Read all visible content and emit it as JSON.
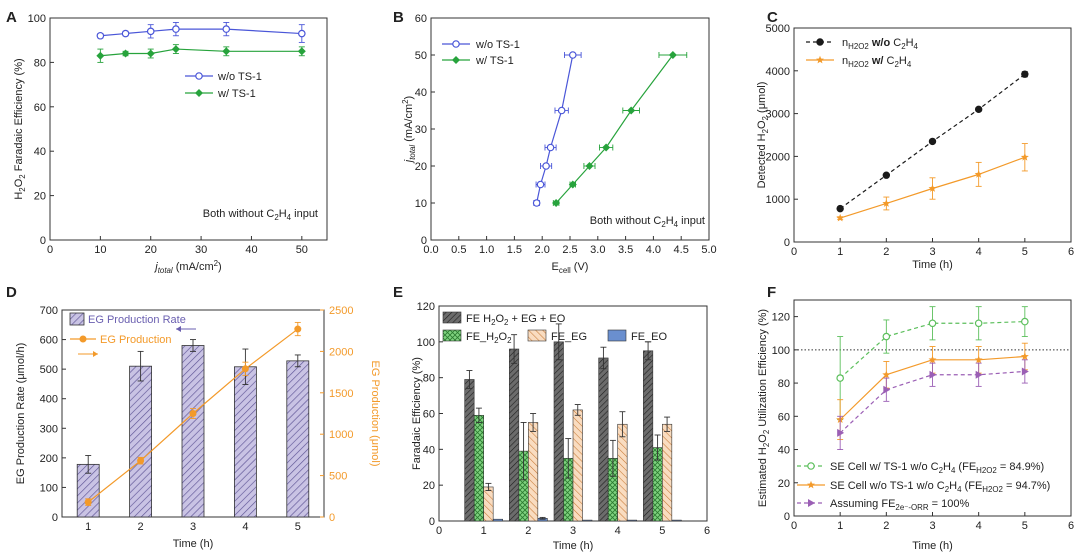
{
  "chart_data": [
    {
      "panel": "A",
      "type": "line",
      "xlabel": "j_total (mA/cm2)",
      "ylabel": "H2O2 Faradaic Efficiency (%)",
      "xlim": [
        0,
        55
      ],
      "ylim": [
        0,
        100
      ],
      "xticks": [
        0,
        10,
        20,
        30,
        40,
        50
      ],
      "yticks": [
        0,
        20,
        40,
        60,
        80,
        100
      ],
      "annotation": "Both without C2H4 input",
      "series": [
        {
          "name": "w/o TS-1",
          "color": "#4a56d8",
          "marker": "open-circle",
          "x": [
            10,
            15,
            20,
            25,
            35,
            50
          ],
          "y": [
            92,
            93,
            94,
            95,
            95,
            93
          ],
          "err": [
            1,
            1,
            3,
            3,
            3,
            4
          ]
        },
        {
          "name": "w/   TS-1",
          "color": "#27a33c",
          "marker": "diamond",
          "x": [
            10,
            15,
            20,
            25,
            35,
            50
          ],
          "y": [
            83,
            84,
            84,
            86,
            85,
            85
          ],
          "err": [
            3,
            1,
            2,
            2,
            2,
            2
          ]
        }
      ]
    },
    {
      "panel": "B",
      "type": "line",
      "xlabel": "E_cell (V)",
      "ylabel": "j_total (mA/cm2)",
      "xlim": [
        0,
        5
      ],
      "ylim": [
        0,
        60
      ],
      "xticks": [
        0,
        0.5,
        1.0,
        1.5,
        2.0,
        2.5,
        3.0,
        3.5,
        4.0,
        4.5,
        5.0
      ],
      "yticks": [
        0,
        10,
        20,
        30,
        40,
        50,
        60
      ],
      "annotation": "Both without C2H4 input",
      "series": [
        {
          "name": "w/o TS-1",
          "color": "#4a56d8",
          "marker": "open-circle",
          "x": [
            1.9,
            1.97,
            2.07,
            2.15,
            2.35,
            2.55
          ],
          "y": [
            10,
            15,
            20,
            25,
            35,
            50
          ],
          "xerr": [
            0.05,
            0.08,
            0.1,
            0.1,
            0.12,
            0.15
          ]
        },
        {
          "name": "w/ TS-1",
          "color": "#27a33c",
          "marker": "diamond",
          "x": [
            2.25,
            2.55,
            2.85,
            3.15,
            3.6,
            4.35
          ],
          "y": [
            10,
            15,
            20,
            25,
            35,
            50
          ],
          "xerr": [
            0.05,
            0.05,
            0.1,
            0.12,
            0.15,
            0.25
          ]
        }
      ]
    },
    {
      "panel": "C",
      "type": "line",
      "xlabel": "Time (h)",
      "ylabel": "Detected H2O2 (μmol)",
      "xlim": [
        0,
        6
      ],
      "ylim": [
        0,
        5000
      ],
      "xticks": [
        0,
        1,
        2,
        3,
        4,
        5,
        6
      ],
      "yticks": [
        0,
        1000,
        2000,
        3000,
        4000,
        5000
      ],
      "series": [
        {
          "name": "n_H2O2 w/o C2H4",
          "color": "#1a1a1a",
          "marker": "filled-circle",
          "x": [
            1,
            2,
            3,
            4,
            5
          ],
          "y": [
            780,
            1560,
            2350,
            3100,
            3920
          ],
          "err": [
            30,
            30,
            30,
            40,
            60
          ]
        },
        {
          "name": "n_H2O2 w/ C2H4",
          "color": "#f39a2a",
          "marker": "star",
          "x": [
            1,
            2,
            3,
            4,
            5
          ],
          "y": [
            560,
            900,
            1250,
            1580,
            1980
          ],
          "err": [
            30,
            150,
            250,
            280,
            320
          ]
        }
      ]
    },
    {
      "panel": "D",
      "type": "bar",
      "xlabel": "Time (h)",
      "ylabel": "EG Production Rate (μmol/h)",
      "y2label": "EG Production (μmol)",
      "categories": [
        "1",
        "2",
        "3",
        "4",
        "5"
      ],
      "ylim": [
        0,
        700
      ],
      "yticks": [
        0,
        100,
        200,
        300,
        400,
        500,
        600,
        700
      ],
      "y2lim": [
        0,
        2500
      ],
      "y2ticks": [
        0,
        500,
        1000,
        1500,
        2000,
        2500
      ],
      "series": [
        {
          "name": "EG Production Rate",
          "color": "#8a7fc0",
          "axis": "left",
          "kind": "bar",
          "values": [
            178,
            510,
            580,
            508,
            528
          ],
          "err": [
            30,
            50,
            20,
            60,
            20
          ]
        },
        {
          "name": "EG Production",
          "color": "#f39a2a",
          "axis": "right",
          "kind": "line",
          "values": [
            180,
            680,
            1250,
            1790,
            2270
          ],
          "err": [
            40,
            40,
            60,
            80,
            80
          ]
        }
      ]
    },
    {
      "panel": "E",
      "type": "bar",
      "xlabel": "Time (h)",
      "ylabel": "Faradaic Efficiency (%)",
      "xlim": [
        0,
        6
      ],
      "ylim": [
        0,
        120
      ],
      "xticks": [
        0,
        1,
        2,
        3,
        4,
        5,
        6
      ],
      "yticks": [
        0,
        20,
        40,
        60,
        80,
        100,
        120
      ],
      "categories": [
        "1",
        "2",
        "3",
        "4",
        "5"
      ],
      "series": [
        {
          "name": "FE H2O2 + EG + EO",
          "color": "#5a5a5a",
          "values": [
            79,
            96,
            100,
            91,
            95
          ],
          "err": [
            5,
            8,
            10,
            6,
            5
          ]
        },
        {
          "name": "FE_H2O2",
          "color": "#57c05a",
          "values": [
            59,
            39,
            35,
            35,
            41
          ],
          "err": [
            4,
            16,
            11,
            10,
            7
          ]
        },
        {
          "name": "FE_EG",
          "color": "#f5c79a",
          "values": [
            19,
            55,
            62,
            54,
            54
          ],
          "err": [
            2,
            5,
            3,
            7,
            4
          ]
        },
        {
          "name": "FE_EO",
          "color": "#6a8fcf",
          "values": [
            1,
            1.5,
            0.5,
            0.5,
            0.5
          ],
          "err": [
            0,
            0.5,
            0,
            0,
            0
          ]
        }
      ]
    },
    {
      "panel": "F",
      "type": "line",
      "xlabel": "Time (h)",
      "ylabel": "Estimated H2O2 Utilization Efficiency (%)",
      "xlim": [
        0,
        6
      ],
      "ylim": [
        0,
        130
      ],
      "xticks": [
        0,
        1,
        2,
        3,
        4,
        5,
        6
      ],
      "yticks": [
        0,
        20,
        40,
        60,
        80,
        100,
        120
      ],
      "refline": 100,
      "series": [
        {
          "name": "SE Cell w/ TS-1 w/o C2H4 (FE_H2O2 = 84.9%)",
          "color": "#5cbf5c",
          "marker": "open-circle",
          "x": [
            1,
            2,
            3,
            4,
            5
          ],
          "y": [
            83,
            108,
            116,
            116,
            117
          ],
          "err": [
            25,
            10,
            10,
            10,
            9
          ]
        },
        {
          "name": "SE Cell w/o TS-1 w/o C2H4 (FE_H2O2 = 94.7%)",
          "color": "#f39a2a",
          "marker": "star",
          "x": [
            1,
            2,
            3,
            4,
            5
          ],
          "y": [
            58,
            85,
            94,
            94,
            96
          ],
          "err": [
            12,
            8,
            8,
            8,
            8
          ]
        },
        {
          "name": "Assuming FE_2e-ORR = 100%",
          "color": "#9b5fb5",
          "marker": "triangle",
          "x": [
            1,
            2,
            3,
            4,
            5
          ],
          "y": [
            50,
            76,
            85,
            85,
            87
          ],
          "err": [
            10,
            7,
            7,
            7,
            7
          ]
        }
      ]
    }
  ]
}
